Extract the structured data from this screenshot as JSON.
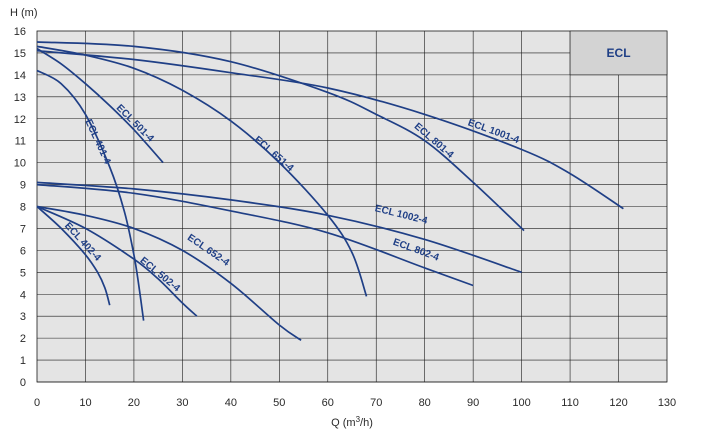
{
  "chart_data": {
    "type": "line",
    "title": "",
    "badge": "ECL",
    "xlabel": "Q (m",
    "xlabel_sup": "3",
    "xlabel_suffix": "/h)",
    "ylabel": "H (m)",
    "xlim": [
      0,
      130
    ],
    "ylim": [
      0,
      16
    ],
    "xticks": [
      0,
      10,
      20,
      30,
      40,
      50,
      60,
      70,
      80,
      90,
      100,
      110,
      120,
      130
    ],
    "yticks": [
      0,
      1,
      2,
      3,
      4,
      5,
      6,
      7,
      8,
      9,
      10,
      11,
      12,
      13,
      14,
      15,
      16
    ],
    "grid": true,
    "colors": {
      "curve": "#1f3f86",
      "background": "#e4e4e4",
      "grid": "#1a1a1a",
      "badge": "#d3d3d3"
    },
    "series": [
      {
        "name": "ECL 402-4",
        "x": [
          0,
          5,
          10,
          12.5,
          14,
          15
        ],
        "y": [
          8.0,
          7.0,
          5.8,
          5.0,
          4.3,
          3.5
        ]
      },
      {
        "name": "ECL 401-4",
        "x": [
          0,
          5,
          10,
          15,
          18,
          20,
          21,
          22
        ],
        "y": [
          14.2,
          13.6,
          12.2,
          9.8,
          7.8,
          5.8,
          4.4,
          2.8
        ]
      },
      {
        "name": "ECL 501-4",
        "x": [
          0,
          5,
          10,
          15,
          20,
          26
        ],
        "y": [
          15.2,
          14.5,
          13.6,
          12.6,
          11.5,
          10.0
        ]
      },
      {
        "name": "ECL 502-4",
        "x": [
          0,
          10,
          20,
          25,
          30,
          33
        ],
        "y": [
          8.0,
          7.0,
          5.6,
          4.7,
          3.6,
          3.0
        ]
      },
      {
        "name": "ECL 652-4",
        "x": [
          0,
          10,
          20,
          30,
          40,
          50,
          54.5
        ],
        "y": [
          8.0,
          7.6,
          7.0,
          6.0,
          4.5,
          2.6,
          1.9
        ]
      },
      {
        "name": "ECL 651-4",
        "x": [
          0,
          10,
          20,
          30,
          40,
          50,
          60,
          65,
          68
        ],
        "y": [
          15.3,
          14.9,
          14.3,
          13.3,
          11.9,
          10.0,
          7.6,
          5.9,
          3.9
        ]
      },
      {
        "name": "ECL 802-4",
        "x": [
          0,
          20,
          40,
          60,
          80,
          90
        ],
        "y": [
          9.0,
          8.6,
          7.8,
          6.8,
          5.2,
          4.4
        ]
      },
      {
        "name": "ECL 1002-4",
        "x": [
          0,
          20,
          40,
          60,
          80,
          100
        ],
        "y": [
          9.1,
          8.8,
          8.3,
          7.6,
          6.5,
          5.0
        ]
      },
      {
        "name": "ECL 801-4",
        "x": [
          0,
          20,
          40,
          60,
          70,
          80,
          90,
          100.5
        ],
        "y": [
          15.5,
          15.3,
          14.6,
          13.2,
          12.2,
          11.0,
          9.1,
          6.9
        ]
      },
      {
        "name": "ECL 1001-4",
        "x": [
          0,
          20,
          40,
          60,
          80,
          100,
          110,
          121
        ],
        "y": [
          15.1,
          14.7,
          14.1,
          13.4,
          12.2,
          10.6,
          9.5,
          7.9
        ]
      }
    ]
  }
}
